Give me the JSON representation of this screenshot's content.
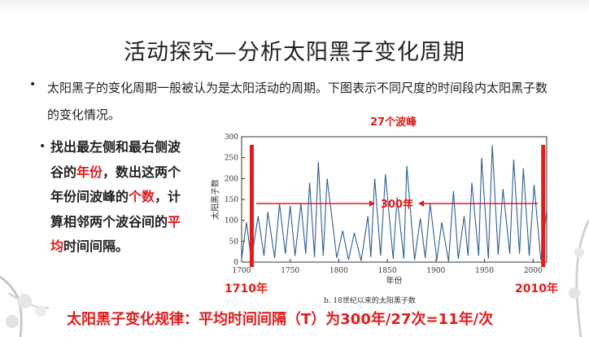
{
  "slide": {
    "title": "活动探究—分析太阳黑子变化周期",
    "bullet1": "太阳黑子的变化周期一般被认为是太阳活动的周期。下图表示不同尺度的时间段内太阳黑子数的变化情况。",
    "task": {
      "part1": "找出最左侧和最右侧波谷的",
      "highlight1": "年份",
      "part2": "，数出这两个年份间波峰的",
      "highlight2": "个数",
      "part3": "，计算相邻两个波谷间的",
      "highlight3": "平均",
      "part4": "时间间隔。"
    },
    "conclusion": "太阳黑子变化规律：平均时间间隔（T）为300年/27次=11年/次"
  },
  "annotations": {
    "peaks": "27个波峰",
    "span": "300年",
    "left_year": "1710年",
    "right_year": "2010年"
  },
  "colors": {
    "highlight": "#e21b1b",
    "series": "#2f5f8f",
    "marker": "#e21b1b"
  },
  "chart_data": {
    "type": "line",
    "caption": "b. 18世纪以来的太阳黑子数",
    "xlabel": "年份",
    "ylabel": "太阳黑子数",
    "xlim": [
      1700,
      2014
    ],
    "ylim": [
      0,
      300
    ],
    "xticks": [
      1700,
      1750,
      1800,
      1850,
      1900,
      1950,
      2000
    ],
    "yticks": [
      0,
      50,
      100,
      150,
      200,
      250,
      300
    ],
    "series": [
      {
        "x": [
          1700,
          1705,
          1710,
          1717,
          1723,
          1727,
          1734,
          1739,
          1745,
          1750,
          1755,
          1761,
          1766,
          1770,
          1775,
          1779,
          1784,
          1788,
          1798,
          1804,
          1810,
          1816,
          1823,
          1830,
          1833,
          1837,
          1843,
          1848,
          1856,
          1860,
          1867,
          1870,
          1878,
          1884,
          1889,
          1894,
          1901,
          1906,
          1913,
          1918,
          1923,
          1929,
          1933,
          1937,
          1944,
          1947,
          1954,
          1958,
          1964,
          1969,
          1976,
          1980,
          1986,
          1990,
          1996,
          2001,
          2008,
          2014
        ],
        "y": [
          8,
          95,
          5,
          110,
          15,
          120,
          10,
          140,
          20,
          135,
          15,
          140,
          20,
          190,
          12,
          240,
          15,
          200,
          10,
          75,
          5,
          70,
          3,
          110,
          12,
          200,
          15,
          210,
          8,
          155,
          8,
          230,
          5,
          105,
          10,
          140,
          5,
          95,
          2,
          170,
          8,
          110,
          15,
          190,
          15,
          250,
          8,
          280,
          18,
          175,
          20,
          245,
          20,
          225,
          15,
          185,
          5,
          125
        ]
      }
    ]
  }
}
